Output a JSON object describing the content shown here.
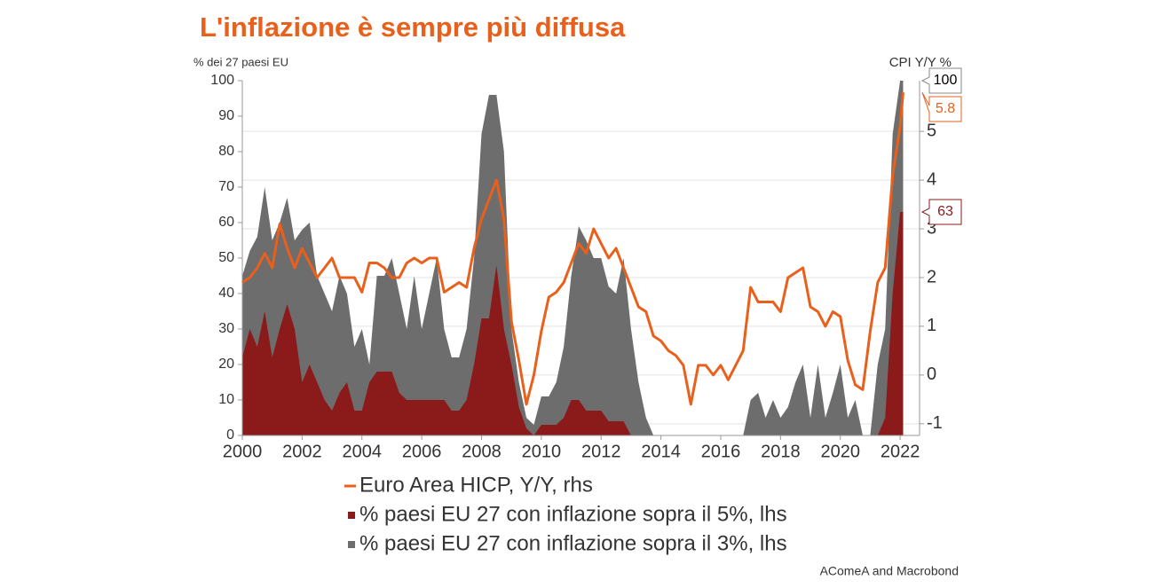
{
  "chart_data": {
    "type": "area-line",
    "title": "L'inflazione è sempre più diffusa",
    "y_label": "% dei 27 paesi EU",
    "y2_label": "CPI Y/Y %",
    "source": "AComeA and Macrobond",
    "x": [
      2000,
      2000.25,
      2000.5,
      2000.75,
      2001,
      2001.25,
      2001.5,
      2001.75,
      2002,
      2002.25,
      2002.5,
      2002.75,
      2003,
      2003.25,
      2003.5,
      2003.75,
      2004,
      2004.25,
      2004.5,
      2004.75,
      2005,
      2005.25,
      2005.5,
      2005.75,
      2006,
      2006.25,
      2006.5,
      2006.75,
      2007,
      2007.25,
      2007.5,
      2007.75,
      2008,
      2008.25,
      2008.5,
      2008.75,
      2009,
      2009.25,
      2009.5,
      2009.75,
      2010,
      2010.25,
      2010.5,
      2010.75,
      2011,
      2011.25,
      2011.5,
      2011.75,
      2012,
      2012.25,
      2012.5,
      2012.75,
      2013,
      2013.25,
      2013.5,
      2013.75,
      2014,
      2014.25,
      2014.5,
      2014.75,
      2015,
      2015.25,
      2015.5,
      2015.75,
      2016,
      2016.25,
      2016.5,
      2016.75,
      2017,
      2017.25,
      2017.5,
      2017.75,
      2018,
      2018.25,
      2018.5,
      2018.75,
      2019,
      2019.25,
      2019.5,
      2019.75,
      2020,
      2020.25,
      2020.5,
      2020.75,
      2021,
      2021.25,
      2021.5,
      2021.75,
      2022,
      2022.1
    ],
    "series": [
      {
        "name": "Euro Area HICP, Y/Y, rhs",
        "kind": "line",
        "axis": "y2",
        "color": "#e8601c",
        "values": [
          1.9,
          2.0,
          2.2,
          2.5,
          2.2,
          3.1,
          2.6,
          2.2,
          2.6,
          2.3,
          2.0,
          2.2,
          2.4,
          2.0,
          2.0,
          2.0,
          1.7,
          2.3,
          2.3,
          2.2,
          2.0,
          2.0,
          2.3,
          2.4,
          2.3,
          2.4,
          2.4,
          1.7,
          1.8,
          1.9,
          1.8,
          2.6,
          3.2,
          3.6,
          4.0,
          3.2,
          1.1,
          0.3,
          -0.6,
          0.0,
          0.9,
          1.6,
          1.7,
          1.9,
          2.3,
          2.7,
          2.5,
          3.0,
          2.7,
          2.4,
          2.6,
          2.2,
          1.8,
          1.4,
          1.3,
          0.8,
          0.7,
          0.5,
          0.4,
          0.2,
          -0.6,
          0.2,
          0.2,
          0.0,
          0.2,
          -0.1,
          0.2,
          0.5,
          1.8,
          1.5,
          1.5,
          1.5,
          1.3,
          2.0,
          2.1,
          2.2,
          1.4,
          1.3,
          1.0,
          1.3,
          1.2,
          0.3,
          -0.2,
          -0.3,
          0.9,
          1.9,
          2.2,
          4.1,
          5.1,
          5.8
        ]
      },
      {
        "name": "% paesi EU 27 con inflazione sopra il 5%, lhs",
        "kind": "area",
        "color": "#8b1a1a",
        "values": [
          22,
          30,
          25,
          35,
          22,
          30,
          37,
          30,
          15,
          20,
          15,
          10,
          7,
          12,
          15,
          7,
          7,
          15,
          18,
          18,
          18,
          12,
          10,
          10,
          10,
          10,
          10,
          10,
          7,
          7,
          10,
          20,
          33,
          33,
          48,
          30,
          20,
          8,
          2,
          0,
          3,
          3,
          3,
          5,
          10,
          10,
          7,
          7,
          7,
          4,
          4,
          4,
          0,
          0,
          0,
          0,
          0,
          0,
          0,
          0,
          0,
          0,
          0,
          0,
          0,
          0,
          0,
          0,
          0,
          0,
          0,
          0,
          0,
          0,
          0,
          0,
          0,
          0,
          0,
          0,
          0,
          0,
          0,
          0,
          0,
          0,
          5,
          40,
          63,
          63
        ]
      },
      {
        "name": "% paesi EU 27 con inflazione sopra il 3%, lhs",
        "kind": "area",
        "color": "#6d6d6d",
        "values": [
          45,
          52,
          56,
          70,
          55,
          60,
          67,
          55,
          58,
          60,
          45,
          40,
          35,
          45,
          40,
          25,
          30,
          20,
          45,
          45,
          50,
          40,
          30,
          45,
          30,
          40,
          50,
          30,
          22,
          22,
          30,
          50,
          85,
          96,
          96,
          80,
          30,
          15,
          5,
          3,
          11,
          11,
          15,
          25,
          45,
          59,
          55,
          50,
          50,
          42,
          40,
          50,
          30,
          15,
          5,
          0,
          0,
          0,
          0,
          0,
          0,
          0,
          0,
          0,
          0,
          0,
          0,
          0,
          10,
          12,
          5,
          10,
          5,
          8,
          15,
          20,
          5,
          20,
          5,
          12,
          20,
          5,
          10,
          0,
          0,
          20,
          30,
          85,
          100,
          100
        ]
      }
    ],
    "xlim": [
      2000,
      2022.65
    ],
    "xticks": [
      2000,
      2002,
      2004,
      2006,
      2008,
      2010,
      2012,
      2014,
      2016,
      2018,
      2020,
      2022
    ],
    "ylim": [
      0,
      100
    ],
    "yticks": [
      0,
      10,
      20,
      30,
      40,
      50,
      60,
      70,
      80,
      90,
      100
    ],
    "y2lim": [
      -1.24,
      6.04
    ],
    "y2ticks": [
      -1,
      0,
      1,
      2,
      3,
      4,
      5
    ],
    "grid": true
  }
}
